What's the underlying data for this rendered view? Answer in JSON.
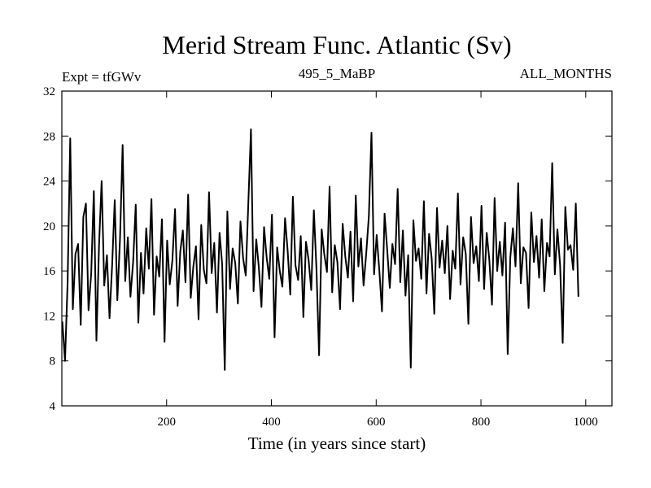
{
  "header": {
    "title": "Merid Stream Func. Atlantic (Sv)",
    "expt": "Expt = tfGWv",
    "run": "495_5_MaBP",
    "months": "ALL_MONTHS"
  },
  "chart_data": {
    "type": "line",
    "title": "Merid Stream Func. Atlantic (Sv)",
    "xlabel": "Time (in years since start)",
    "ylabel": "",
    "xlim": [
      0,
      1050
    ],
    "ylim": [
      4,
      32
    ],
    "x_ticks": [
      200,
      400,
      600,
      800,
      1000
    ],
    "y_ticks": [
      4,
      8,
      12,
      16,
      20,
      24,
      28,
      32
    ],
    "grid": false,
    "legend": "none",
    "line_color": "#000000",
    "series": [
      {
        "x_start": 1,
        "x_step": 5,
        "values": [
          11.5,
          8.0,
          15.0,
          27.8,
          12.6,
          17.5,
          18.4,
          11.2,
          20.8,
          22.0,
          12.5,
          15.8,
          23.1,
          9.8,
          18.3,
          24.0,
          14.7,
          17.4,
          11.8,
          16.5,
          22.3,
          13.4,
          18.9,
          27.2,
          15.1,
          19.0,
          13.7,
          16.8,
          21.9,
          11.4,
          17.6,
          14.0,
          19.8,
          16.2,
          22.4,
          12.1,
          17.3,
          15.5,
          20.6,
          9.7,
          18.7,
          14.8,
          16.9,
          21.5,
          12.9,
          17.7,
          19.6,
          15.0,
          22.8,
          13.6,
          16.4,
          18.2,
          11.7,
          20.1,
          16.1,
          14.9,
          23.0,
          15.8,
          18.5,
          12.3,
          19.4,
          16.6,
          7.2,
          21.3,
          14.4,
          18.0,
          16.7,
          13.1,
          20.4,
          17.1,
          15.6,
          22.1,
          28.6,
          14.2,
          18.8,
          16.3,
          12.8,
          19.9,
          17.2,
          15.3,
          21.0,
          10.1,
          18.1,
          16.0,
          14.6,
          20.7,
          17.8,
          13.9,
          22.6,
          16.5,
          15.2,
          19.1,
          11.9,
          18.6,
          17.0,
          14.3,
          21.4,
          16.2,
          8.5,
          19.7,
          17.5,
          15.9,
          23.5,
          14.1,
          18.3,
          16.8,
          12.6,
          20.2,
          17.3,
          15.4,
          19.5,
          13.3,
          22.7,
          16.4,
          18.9,
          14.7,
          17.6,
          20.9,
          28.3,
          15.7,
          19.2,
          16.1,
          12.4,
          21.1,
          17.9,
          14.5,
          18.4,
          16.6,
          23.3,
          15.0,
          19.6,
          13.8,
          17.4,
          7.4,
          20.5,
          16.9,
          18.0,
          15.3,
          22.2,
          14.0,
          19.3,
          17.1,
          12.2,
          21.6,
          16.3,
          18.7,
          15.8,
          20.0,
          13.5,
          17.8,
          16.2,
          22.9,
          14.8,
          19.0,
          17.5,
          11.3,
          20.8,
          16.7,
          18.2,
          15.1,
          21.8,
          14.4,
          19.4,
          17.0,
          13.0,
          22.5,
          16.0,
          18.6,
          15.6,
          20.3,
          8.6,
          17.2,
          19.8,
          16.4,
          23.8,
          14.9,
          18.1,
          17.6,
          12.7,
          21.2,
          16.8,
          19.1,
          15.4,
          20.6,
          14.2,
          18.5,
          17.3,
          25.6,
          15.7,
          19.7,
          16.5,
          9.6,
          21.7,
          17.9,
          18.3,
          16.1,
          22.0,
          13.7
        ]
      }
    ]
  }
}
